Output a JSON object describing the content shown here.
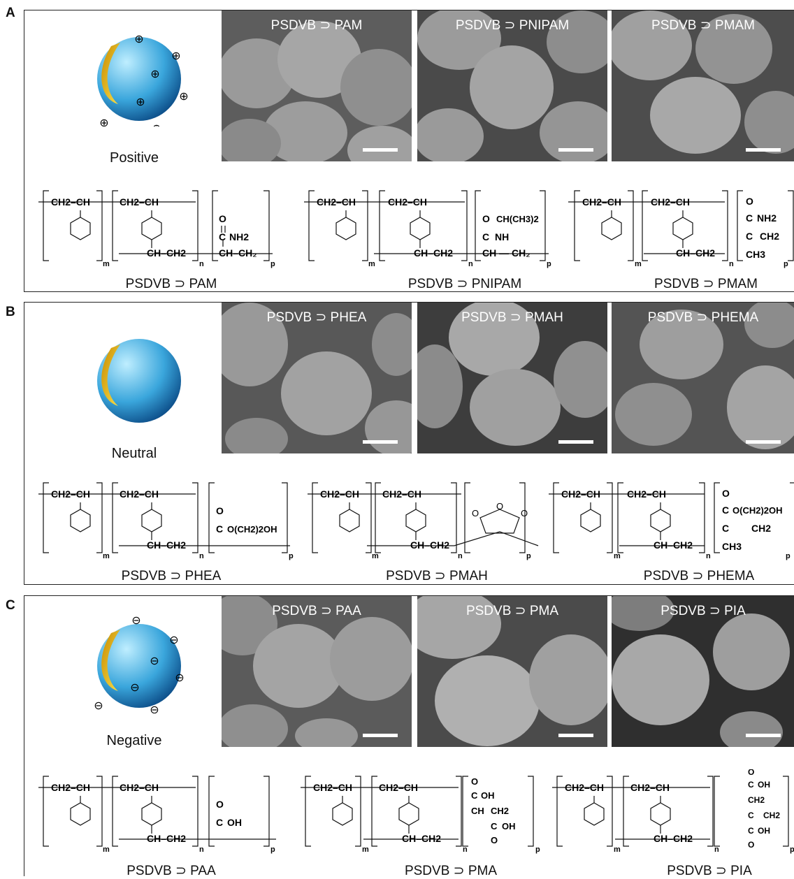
{
  "panels": [
    {
      "letter": "A",
      "charge_label": "Positive",
      "charge_symbol": "⊕",
      "images": [
        {
          "label": "PSDVB ⊃ PAM"
        },
        {
          "label": "PSDVB ⊃ PNIPAM"
        },
        {
          "label": "PSDVB ⊃ PMAM"
        }
      ],
      "structures": [
        {
          "caption": "PSDVB ⊃ PAM",
          "group": "C(=O)NH2",
          "texts": [
            "O",
            "C",
            "NH2"
          ]
        },
        {
          "caption": "PSDVB ⊃ PNIPAM",
          "group": "C(=O)NH-CH(CH3)2",
          "texts": [
            "O",
            "CH(CH3)2",
            "C",
            "NH"
          ]
        },
        {
          "caption": "PSDVB ⊃ PMAM",
          "group": "C(CH3)C(=O)NH2",
          "texts": [
            "O",
            "C",
            "NH2",
            "C",
            "CH2",
            "CH3"
          ]
        }
      ]
    },
    {
      "letter": "B",
      "charge_label": "Neutral",
      "charge_symbol": "",
      "images": [
        {
          "label": "PSDVB ⊃ PHEA"
        },
        {
          "label": "PSDVB ⊃ PMAH"
        },
        {
          "label": "PSDVB ⊃ PHEMA"
        }
      ],
      "structures": [
        {
          "caption": "PSDVB ⊃ PHEA",
          "group": "C(=O)O(CH2)2OH",
          "texts": [
            "O",
            "C",
            "O(CH2)2OH"
          ]
        },
        {
          "caption": "PSDVB ⊃ PMAH",
          "group": "maleic anhydride ring",
          "texts": [
            "O",
            "O",
            "O"
          ]
        },
        {
          "caption": "PSDVB ⊃ PHEMA",
          "group": "C(CH3)C(=O)O(CH2)2OH",
          "texts": [
            "O",
            "C",
            "O(CH2)2OH",
            "C",
            "CH2",
            "CH3"
          ]
        }
      ]
    },
    {
      "letter": "C",
      "charge_label": "Negative",
      "charge_symbol": "⊖",
      "images": [
        {
          "label": "PSDVB ⊃ PAA"
        },
        {
          "label": "PSDVB ⊃ PMA"
        },
        {
          "label": "PSDVB ⊃ PIA"
        }
      ],
      "structures": [
        {
          "caption": "PSDVB ⊃ PAA",
          "group": "C(=O)OH",
          "texts": [
            "O",
            "C",
            "OH"
          ]
        },
        {
          "caption": "PSDVB ⊃ PMA",
          "group": "CH(COOH)CH(COOH)",
          "texts": [
            "O",
            "C",
            "OH",
            "CH",
            "CH2",
            "C",
            "OH",
            "O"
          ]
        },
        {
          "caption": "PSDVB ⊃ PIA",
          "group": "C(COOH)(CH2COOH)",
          "texts": [
            "O",
            "C",
            "OH",
            "CH2",
            "C",
            "CH2",
            "C",
            "OH",
            "O"
          ]
        }
      ]
    }
  ],
  "repeat_units": {
    "styrene": "CH2–CH",
    "divinylbenzene_top": "CH2–CH",
    "divinylbenzene_bottom": "CH–CH2",
    "subscripts": [
      "m",
      "n",
      "p"
    ]
  },
  "colors": {
    "particle_blue": "#3aa6dc",
    "particle_yellow": "#f0c419",
    "sem_gray": "#6e6e6e"
  }
}
